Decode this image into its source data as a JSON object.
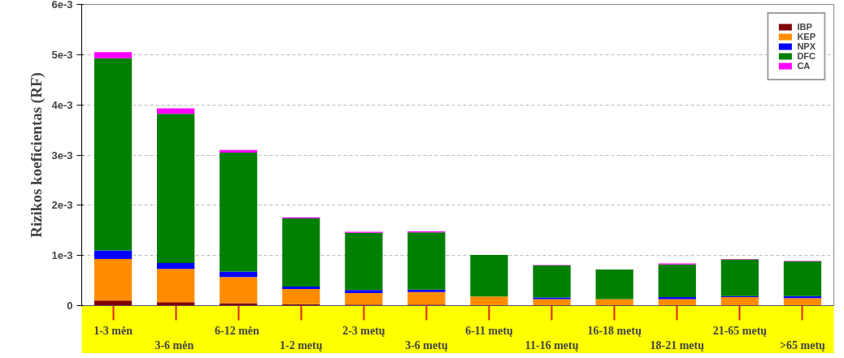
{
  "chart_data": {
    "type": "bar",
    "stacked": true,
    "ylabel": "Rizikos koeficientas (RF)",
    "categories": [
      "1-3 mėn",
      "3-6  mėn",
      "6-12  mėn",
      "1-2 metų",
      "2-3 metų",
      "3-6 metų",
      "6-11 metų",
      "11-16 metų",
      "16-18 metų",
      "18-21 metų",
      "21-65 metų",
      ">65 metų"
    ],
    "series": [
      {
        "name": "IBP",
        "color": "#800000",
        "values": [
          0.0001,
          7e-05,
          5e-05,
          3e-05,
          2e-05,
          2e-05,
          1e-05,
          1e-05,
          1e-05,
          1e-05,
          1e-05,
          1e-05
        ]
      },
      {
        "name": "KEP",
        "color": "#ff8c00",
        "values": [
          0.00083,
          0.00066,
          0.00052,
          0.0003,
          0.00023,
          0.00025,
          0.00017,
          0.00012,
          0.00012,
          0.00012,
          0.00016,
          0.00014
        ]
      },
      {
        "name": "NPX",
        "color": "#0000ff",
        "values": [
          0.00017,
          0.00012,
          0.00011,
          5e-05,
          6e-05,
          5e-05,
          null,
          3e-05,
          null,
          4e-05,
          2e-05,
          4e-05
        ]
      },
      {
        "name": "DFC",
        "color": "#008000",
        "values": [
          0.00383,
          0.00297,
          0.00237,
          0.00136,
          0.00114,
          0.00114,
          0.00083,
          0.00064,
          0.00059,
          0.00065,
          0.00073,
          0.00069
        ]
      },
      {
        "name": "CA",
        "color": "#ff00ff",
        "values": [
          0.00012,
          0.00011,
          5e-05,
          2e-05,
          2e-05,
          2e-05,
          null,
          1e-05,
          null,
          2e-05,
          1e-05,
          1e-05
        ]
      }
    ],
    "ylim": [
      0,
      0.006
    ],
    "yticks": [
      {
        "value": 0,
        "label": "0"
      },
      {
        "value": 0.001,
        "label": "1e-3"
      },
      {
        "value": 0.002,
        "label": "2e-3"
      },
      {
        "value": 0.003,
        "label": "3e-3"
      },
      {
        "value": 0.004,
        "label": "4e-3"
      },
      {
        "value": 0.005,
        "label": "5e-3"
      },
      {
        "value": 0.006,
        "label": "6e-3"
      }
    ],
    "grid": "y",
    "legend": "top right"
  }
}
